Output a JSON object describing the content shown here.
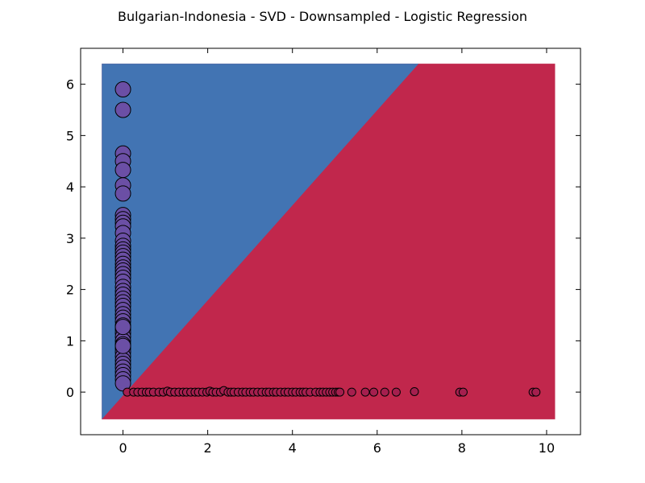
{
  "chart_data": {
    "type": "scatter",
    "title": "Bulgarian-Indonesia - SVD - Downsampled - Logistic Regression",
    "xlabel": "",
    "ylabel": "",
    "xlim": [
      -1,
      10.8
    ],
    "ylim": [
      -0.83,
      6.7
    ],
    "xticks": [
      0,
      2,
      4,
      6,
      8,
      10
    ],
    "yticks": [
      0,
      1,
      2,
      3,
      4,
      5,
      6
    ],
    "grid": false,
    "decision_regions": {
      "extent": {
        "x": [
          -0.5,
          10.2
        ],
        "y": [
          -0.53,
          6.4
        ]
      },
      "boundary": {
        "x0": -0.5,
        "y0": -0.53,
        "x1": 6.98,
        "y1": 6.4
      },
      "upper_left_color": "#4274b3",
      "lower_right_color": "#c1274c"
    },
    "series": [
      {
        "marker_color": "#6b4fa5",
        "marker_size": "large",
        "x": [
          0,
          0,
          0,
          0,
          0,
          0,
          0,
          0,
          0,
          0,
          0,
          0,
          0,
          0,
          0,
          0,
          0,
          0,
          0,
          0,
          0,
          0,
          0,
          0,
          0,
          0,
          0,
          0,
          0,
          0,
          0,
          0,
          0,
          0,
          0,
          0,
          0,
          0,
          0,
          0,
          0,
          0,
          0,
          0,
          0,
          0,
          0,
          0,
          0,
          0,
          0,
          0
        ],
        "y": [
          5.9,
          5.5,
          4.65,
          4.5,
          4.33,
          4.03,
          3.87,
          3.45,
          3.37,
          3.3,
          3.23,
          3.1,
          2.95,
          2.85,
          2.78,
          2.72,
          2.65,
          2.58,
          2.5,
          2.43,
          2.37,
          2.3,
          2.23,
          2.15,
          2.05,
          1.97,
          1.9,
          1.82,
          1.75,
          1.68,
          1.6,
          1.52,
          1.45,
          1.38,
          1.3,
          1.22,
          1.15,
          1.08,
          1.0,
          0.93,
          0.85,
          0.78,
          0.7,
          0.62,
          0.55,
          0.48,
          0.4,
          0.33,
          0.25,
          0.17,
          1.27,
          0.9
        ]
      },
      {
        "marker_color": "#a51f4e",
        "marker_size": "small",
        "x": [
          0.1,
          0.25,
          0.35,
          0.45,
          0.55,
          0.62,
          0.72,
          0.85,
          0.95,
          1.05,
          1.12,
          1.22,
          1.32,
          1.42,
          1.5,
          1.6,
          1.7,
          1.78,
          1.88,
          1.98,
          2.05,
          2.12,
          2.2,
          2.3,
          2.38,
          2.48,
          2.55,
          2.62,
          2.72,
          2.82,
          2.9,
          3.0,
          3.08,
          3.18,
          3.28,
          3.38,
          3.45,
          3.55,
          3.62,
          3.72,
          3.82,
          3.9,
          4.0,
          4.08,
          4.18,
          4.25,
          4.32,
          4.42,
          4.55,
          4.65,
          4.72,
          4.8,
          4.88,
          4.95,
          5.02,
          5.08,
          5.12,
          5.4,
          5.72,
          5.92,
          6.18,
          6.45,
          6.88,
          7.95,
          8.03,
          9.68,
          9.75
        ],
        "y": [
          0,
          0,
          0,
          0,
          0,
          0,
          0,
          0,
          0,
          0.02,
          0,
          0,
          0,
          0,
          0,
          0,
          0,
          0,
          0,
          0,
          0.02,
          0,
          0,
          0,
          0.03,
          0,
          0,
          0,
          0,
          0,
          0,
          0,
          0,
          0,
          0,
          0,
          0,
          0,
          0,
          0,
          0,
          0,
          0,
          0,
          0,
          0,
          0,
          0,
          0,
          0,
          0,
          0,
          0,
          0,
          0,
          0,
          0,
          0,
          0,
          0,
          0,
          0,
          0.01,
          0,
          0,
          0,
          0
        ]
      }
    ]
  }
}
